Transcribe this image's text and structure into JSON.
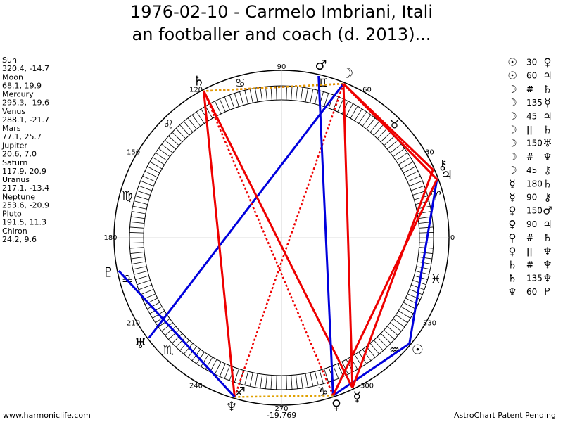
{
  "title_lines": [
    "1976-02-10 - Carmelo Imbriani, Itali",
    "an footballer and coach (d. 2013)..."
  ],
  "planets": [
    {
      "name": "Sun",
      "position": "320.4, -14.7",
      "longitude": 320.4,
      "glyph": "☉"
    },
    {
      "name": "Moon",
      "position": "68.1, 19.9",
      "longitude": 68.1,
      "glyph": "☽"
    },
    {
      "name": "Mercury",
      "position": "295.3, -19.6",
      "longitude": 295.3,
      "glyph": "☿"
    },
    {
      "name": "Venus",
      "position": "288.1, -21.7",
      "longitude": 288.1,
      "glyph": "♀"
    },
    {
      "name": "Mars",
      "position": "77.1, 25.7",
      "longitude": 77.1,
      "glyph": "♂"
    },
    {
      "name": "Jupiter",
      "position": "20.6, 7.0",
      "longitude": 20.6,
      "glyph": "♃"
    },
    {
      "name": "Saturn",
      "position": "117.9, 20.9",
      "longitude": 117.9,
      "glyph": "♄"
    },
    {
      "name": "Uranus",
      "position": "217.1, -13.4",
      "longitude": 217.1,
      "glyph": "♅"
    },
    {
      "name": "Neptune",
      "position": "253.6, -20.9",
      "longitude": 253.6,
      "glyph": "♆"
    },
    {
      "name": "Pluto",
      "position": "191.5, 11.3",
      "longitude": 191.5,
      "glyph": "♇"
    },
    {
      "name": "Chiron",
      "position": "24.2, 9.6",
      "longitude": 24.2,
      "glyph": "⚷"
    }
  ],
  "signs": [
    "♈",
    "♉",
    "♊",
    "♋",
    "♌",
    "♍",
    "♎",
    "♏",
    "♐",
    "♑",
    "♒",
    "♓"
  ],
  "degree_labels": [
    0,
    30,
    60,
    90,
    120,
    150,
    180,
    210,
    240,
    270,
    300,
    330
  ],
  "aspects": [
    {
      "p1": "☉",
      "aspect": 30,
      "p2": "♀",
      "from": "Sun",
      "to": "Venus",
      "color": "#0000dd",
      "dashed": false
    },
    {
      "p1": "☉",
      "aspect": 60,
      "p2": "♃",
      "from": "Sun",
      "to": "Jupiter",
      "color": "#0000dd",
      "dashed": false
    },
    {
      "p1": "☽",
      "aspect": "#",
      "p2": "♄",
      "from": "Moon",
      "to": "Saturn",
      "color": "#ee0000",
      "dashed": true
    },
    {
      "p1": "☽",
      "aspect": 135,
      "p2": "☿",
      "from": "Moon",
      "to": "Mercury",
      "color": "#ee0000",
      "dashed": false
    },
    {
      "p1": "☽",
      "aspect": 45,
      "p2": "♃",
      "from": "Moon",
      "to": "Jupiter",
      "color": "#ee0000",
      "dashed": false
    },
    {
      "p1": "☽",
      "aspect": "||",
      "p2": "♄",
      "from": "Moon",
      "to": "Saturn",
      "color": "#e0a000",
      "dashed": true
    },
    {
      "p1": "☽",
      "aspect": 150,
      "p2": "♅",
      "from": "Moon",
      "to": "Uranus",
      "color": "#0000dd",
      "dashed": false
    },
    {
      "p1": "☽",
      "aspect": "#",
      "p2": "♆",
      "from": "Moon",
      "to": "Neptune",
      "color": "#ee0000",
      "dashed": true
    },
    {
      "p1": "☽",
      "aspect": 45,
      "p2": "⚷",
      "from": "Moon",
      "to": "Chiron",
      "color": "#ee0000",
      "dashed": false
    },
    {
      "p1": "☿",
      "aspect": 180,
      "p2": "♄",
      "from": "Mercury",
      "to": "Saturn",
      "color": "#ee0000",
      "dashed": false
    },
    {
      "p1": "☿",
      "aspect": 90,
      "p2": "⚷",
      "from": "Mercury",
      "to": "Chiron",
      "color": "#ee0000",
      "dashed": false
    },
    {
      "p1": "♀",
      "aspect": 150,
      "p2": "♂",
      "from": "Venus",
      "to": "Mars",
      "color": "#0000dd",
      "dashed": false
    },
    {
      "p1": "♀",
      "aspect": 90,
      "p2": "♃",
      "from": "Venus",
      "to": "Jupiter",
      "color": "#ee0000",
      "dashed": false
    },
    {
      "p1": "♀",
      "aspect": "#",
      "p2": "♄",
      "from": "Venus",
      "to": "Saturn",
      "color": "#ee0000",
      "dashed": true
    },
    {
      "p1": "♀",
      "aspect": "||",
      "p2": "♆",
      "from": "Venus",
      "to": "Neptune",
      "color": "#e0a000",
      "dashed": true
    },
    {
      "p1": "♄",
      "aspect": "#",
      "p2": "♆",
      "from": "Saturn",
      "to": "Neptune",
      "color": "#ee0000",
      "dashed": true
    },
    {
      "p1": "♄",
      "aspect": 135,
      "p2": "♆",
      "from": "Saturn",
      "to": "Neptune",
      "color": "#ee0000",
      "dashed": false
    },
    {
      "p1": "♆",
      "aspect": 60,
      "p2": "♇",
      "from": "Neptune",
      "to": "Pluto",
      "color": "#0000dd",
      "dashed": false
    }
  ],
  "footer": {
    "site": "www.harmoniclife.com",
    "score": "-19,769",
    "notice": "AstroChart Patent Pending"
  }
}
